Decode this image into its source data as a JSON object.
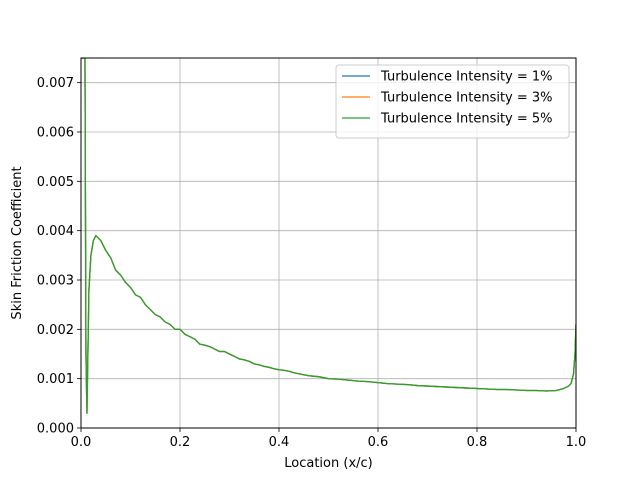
{
  "chart_data": {
    "type": "line",
    "title": "",
    "xlabel": "Location (x/c)",
    "ylabel": "Skin Friction Coefficient",
    "xlim": [
      0.0,
      1.0
    ],
    "ylim": [
      0.0,
      0.0075
    ],
    "xticks": [
      "0.0",
      "0.2",
      "0.4",
      "0.6",
      "0.8",
      "1.0"
    ],
    "yticks": [
      "0.000",
      "0.001",
      "0.002",
      "0.003",
      "0.004",
      "0.005",
      "0.006",
      "0.007"
    ],
    "grid": true,
    "legend_position": "top-right",
    "series": [
      {
        "name": "Turbulence Intensity = 1%",
        "color": "#1f77b4",
        "x": [
          0.0,
          0.004,
          0.008,
          0.01,
          0.012,
          0.016,
          0.02,
          0.025,
          0.03,
          0.035,
          0.04,
          0.05,
          0.06,
          0.07,
          0.08,
          0.09,
          0.1,
          0.11,
          0.12,
          0.13,
          0.14,
          0.15,
          0.16,
          0.17,
          0.18,
          0.19,
          0.2,
          0.21,
          0.22,
          0.23,
          0.24,
          0.25,
          0.26,
          0.27,
          0.28,
          0.29,
          0.3,
          0.31,
          0.32,
          0.33,
          0.34,
          0.35,
          0.36,
          0.37,
          0.38,
          0.39,
          0.4,
          0.41,
          0.42,
          0.43,
          0.44,
          0.45,
          0.46,
          0.47,
          0.48,
          0.49,
          0.5,
          0.52,
          0.54,
          0.56,
          0.58,
          0.6,
          0.62,
          0.64,
          0.66,
          0.68,
          0.7,
          0.72,
          0.74,
          0.76,
          0.78,
          0.8,
          0.82,
          0.84,
          0.86,
          0.88,
          0.9,
          0.92,
          0.94,
          0.96,
          0.975,
          0.985,
          0.99,
          0.995,
          0.998,
          1.0
        ],
        "values": [
          0.0075,
          0.0075,
          0.0075,
          0.0015,
          0.0003,
          0.0028,
          0.0035,
          0.0038,
          0.0039,
          0.00385,
          0.0038,
          0.0036,
          0.00345,
          0.0032,
          0.0031,
          0.00295,
          0.00285,
          0.0027,
          0.00265,
          0.0025,
          0.0024,
          0.0023,
          0.00225,
          0.00215,
          0.0021,
          0.002,
          0.002,
          0.0019,
          0.00185,
          0.0018,
          0.0017,
          0.00168,
          0.00165,
          0.0016,
          0.00155,
          0.00155,
          0.0015,
          0.00145,
          0.0014,
          0.00138,
          0.00135,
          0.0013,
          0.00128,
          0.00125,
          0.00123,
          0.0012,
          0.00118,
          0.00117,
          0.00115,
          0.00112,
          0.0011,
          0.00108,
          0.00106,
          0.00105,
          0.00104,
          0.00102,
          0.001,
          0.00099,
          0.00097,
          0.00095,
          0.00094,
          0.00092,
          0.0009,
          0.00089,
          0.00088,
          0.00086,
          0.00085,
          0.00084,
          0.00083,
          0.00082,
          0.00081,
          0.0008,
          0.00079,
          0.00078,
          0.00078,
          0.00077,
          0.00076,
          0.00076,
          0.00075,
          0.00076,
          0.0008,
          0.00085,
          0.0009,
          0.0011,
          0.0015,
          0.0021
        ]
      },
      {
        "name": "Turbulence Intensity = 3%",
        "color": "#ff7f0e",
        "x": [
          0.0,
          0.004,
          0.008,
          0.01,
          0.012,
          0.016,
          0.02,
          0.025,
          0.03,
          0.035,
          0.04,
          0.05,
          0.06,
          0.07,
          0.08,
          0.09,
          0.1,
          0.11,
          0.12,
          0.13,
          0.14,
          0.15,
          0.16,
          0.17,
          0.18,
          0.19,
          0.2,
          0.21,
          0.22,
          0.23,
          0.24,
          0.25,
          0.26,
          0.27,
          0.28,
          0.29,
          0.3,
          0.31,
          0.32,
          0.33,
          0.34,
          0.35,
          0.36,
          0.37,
          0.38,
          0.39,
          0.4,
          0.41,
          0.42,
          0.43,
          0.44,
          0.45,
          0.46,
          0.47,
          0.48,
          0.49,
          0.5,
          0.52,
          0.54,
          0.56,
          0.58,
          0.6,
          0.62,
          0.64,
          0.66,
          0.68,
          0.7,
          0.72,
          0.74,
          0.76,
          0.78,
          0.8,
          0.82,
          0.84,
          0.86,
          0.88,
          0.9,
          0.92,
          0.94,
          0.96,
          0.975,
          0.985,
          0.99,
          0.995,
          0.998,
          1.0
        ],
        "values": [
          0.0075,
          0.0075,
          0.0075,
          0.0015,
          0.0003,
          0.0028,
          0.0035,
          0.0038,
          0.0039,
          0.00385,
          0.0038,
          0.0036,
          0.00345,
          0.0032,
          0.0031,
          0.00295,
          0.00285,
          0.0027,
          0.00265,
          0.0025,
          0.0024,
          0.0023,
          0.00225,
          0.00215,
          0.0021,
          0.002,
          0.002,
          0.0019,
          0.00185,
          0.0018,
          0.0017,
          0.00168,
          0.00165,
          0.0016,
          0.00155,
          0.00155,
          0.0015,
          0.00145,
          0.0014,
          0.00138,
          0.00135,
          0.0013,
          0.00128,
          0.00125,
          0.00123,
          0.0012,
          0.00118,
          0.00117,
          0.00115,
          0.00112,
          0.0011,
          0.00108,
          0.00106,
          0.00105,
          0.00104,
          0.00102,
          0.001,
          0.00099,
          0.00097,
          0.00095,
          0.00094,
          0.00092,
          0.0009,
          0.00089,
          0.00088,
          0.00086,
          0.00085,
          0.00084,
          0.00083,
          0.00082,
          0.00081,
          0.0008,
          0.00079,
          0.00078,
          0.00078,
          0.00077,
          0.00076,
          0.00076,
          0.00075,
          0.00076,
          0.0008,
          0.00085,
          0.0009,
          0.0011,
          0.0015,
          0.0021
        ]
      },
      {
        "name": "Turbulence Intensity = 5%",
        "color": "#2ca02c",
        "x": [
          0.0,
          0.004,
          0.008,
          0.01,
          0.012,
          0.016,
          0.02,
          0.025,
          0.03,
          0.035,
          0.04,
          0.05,
          0.06,
          0.07,
          0.08,
          0.09,
          0.1,
          0.11,
          0.12,
          0.13,
          0.14,
          0.15,
          0.16,
          0.17,
          0.18,
          0.19,
          0.2,
          0.21,
          0.22,
          0.23,
          0.24,
          0.25,
          0.26,
          0.27,
          0.28,
          0.29,
          0.3,
          0.31,
          0.32,
          0.33,
          0.34,
          0.35,
          0.36,
          0.37,
          0.38,
          0.39,
          0.4,
          0.41,
          0.42,
          0.43,
          0.44,
          0.45,
          0.46,
          0.47,
          0.48,
          0.49,
          0.5,
          0.52,
          0.54,
          0.56,
          0.58,
          0.6,
          0.62,
          0.64,
          0.66,
          0.68,
          0.7,
          0.72,
          0.74,
          0.76,
          0.78,
          0.8,
          0.82,
          0.84,
          0.86,
          0.88,
          0.9,
          0.92,
          0.94,
          0.96,
          0.975,
          0.985,
          0.99,
          0.995,
          0.998,
          1.0
        ],
        "values": [
          0.0075,
          0.0075,
          0.0075,
          0.0015,
          0.0003,
          0.0028,
          0.0035,
          0.0038,
          0.0039,
          0.00385,
          0.0038,
          0.0036,
          0.00345,
          0.0032,
          0.0031,
          0.00295,
          0.00285,
          0.0027,
          0.00265,
          0.0025,
          0.0024,
          0.0023,
          0.00225,
          0.00215,
          0.0021,
          0.002,
          0.002,
          0.0019,
          0.00185,
          0.0018,
          0.0017,
          0.00168,
          0.00165,
          0.0016,
          0.00155,
          0.00155,
          0.0015,
          0.00145,
          0.0014,
          0.00138,
          0.00135,
          0.0013,
          0.00128,
          0.00125,
          0.00123,
          0.0012,
          0.00118,
          0.00117,
          0.00115,
          0.00112,
          0.0011,
          0.00108,
          0.00106,
          0.00105,
          0.00104,
          0.00102,
          0.001,
          0.00099,
          0.00097,
          0.00095,
          0.00094,
          0.00092,
          0.0009,
          0.00089,
          0.00088,
          0.00086,
          0.00085,
          0.00084,
          0.00083,
          0.00082,
          0.00081,
          0.0008,
          0.00079,
          0.00078,
          0.00078,
          0.00077,
          0.00076,
          0.00076,
          0.00075,
          0.00076,
          0.0008,
          0.00085,
          0.0009,
          0.0011,
          0.0015,
          0.0021
        ]
      }
    ]
  }
}
